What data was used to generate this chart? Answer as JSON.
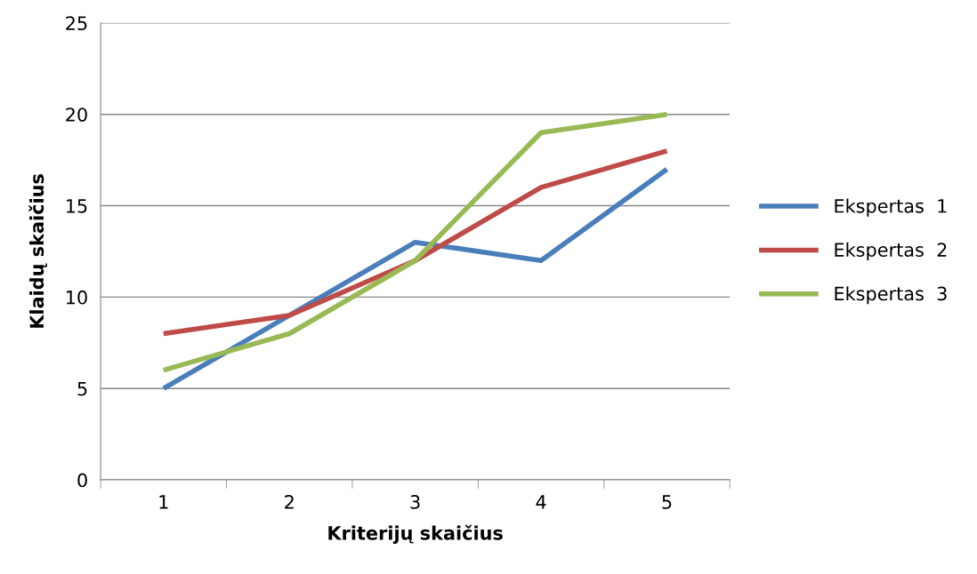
{
  "chart_data": {
    "type": "line",
    "xlabel": "Kriterijų skaičius",
    "ylabel": "Klaidų skaičius",
    "categories": [
      "1",
      "2",
      "3",
      "4",
      "5"
    ],
    "series": [
      {
        "name": "Ekspertas  1",
        "color": "#4a7ebb",
        "values": [
          5,
          9,
          13,
          12,
          17
        ]
      },
      {
        "name": "Ekspertas  2",
        "color": "#be4b48",
        "values": [
          8,
          9,
          12,
          16,
          18
        ]
      },
      {
        "name": "Ekspertas  3",
        "color": "#98b954",
        "values": [
          6,
          8,
          12,
          19,
          20
        ]
      }
    ],
    "ylim": [
      0,
      25
    ],
    "yticks": [
      0,
      5,
      10,
      15,
      20,
      25
    ],
    "grid": "y",
    "legend": "right",
    "marker": "none",
    "line_style": "solid"
  }
}
